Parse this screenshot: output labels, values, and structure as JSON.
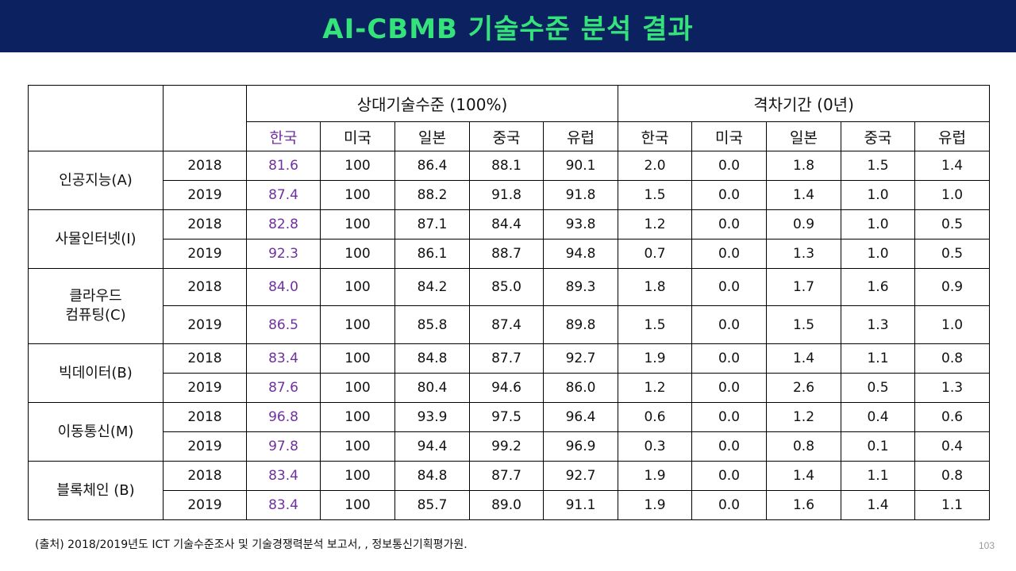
{
  "slide": {
    "title": "AI-CBMB 기술수준 분석 결과",
    "footnote": "(출처) 2018/2019년도 ICT 기술수준조사 및 기술경쟁력분석 보고서, , 정보통신기획평가원.",
    "page_number": "103"
  },
  "table": {
    "group_relative": {
      "title": "상대기술수준",
      "unit": "(100%)"
    },
    "group_gap": {
      "title": "격차기간",
      "unit": "(0년)"
    },
    "countries": [
      "한국",
      "미국",
      "일본",
      "중국",
      "유럽"
    ],
    "rows": [
      {
        "domain_lines": [
          "인공지능(A)"
        ],
        "years": [
          {
            "year": "2018",
            "rel": [
              "81.6",
              "100",
              "86.4",
              "88.1",
              "90.1"
            ],
            "gap": [
              "2.0",
              "0.0",
              "1.8",
              "1.5",
              "1.4"
            ]
          },
          {
            "year": "2019",
            "rel": [
              "87.4",
              "100",
              "88.2",
              "91.8",
              "91.8"
            ],
            "gap": [
              "1.5",
              "0.0",
              "1.4",
              "1.0",
              "1.0"
            ]
          }
        ]
      },
      {
        "domain_lines": [
          "사물인터넷(I)"
        ],
        "years": [
          {
            "year": "2018",
            "rel": [
              "82.8",
              "100",
              "87.1",
              "84.4",
              "93.8"
            ],
            "gap": [
              "1.2",
              "0.0",
              "0.9",
              "1.0",
              "0.5"
            ]
          },
          {
            "year": "2019",
            "rel": [
              "92.3",
              "100",
              "86.1",
              "88.7",
              "94.8"
            ],
            "gap": [
              "0.7",
              "0.0",
              "1.3",
              "1.0",
              "0.5"
            ]
          }
        ]
      },
      {
        "domain_lines": [
          "클라우드",
          "컴퓨팅(C)"
        ],
        "years": [
          {
            "year": "2018",
            "rel": [
              "84.0",
              "100",
              "84.2",
              "85.0",
              "89.3"
            ],
            "gap": [
              "1.8",
              "0.0",
              "1.7",
              "1.6",
              "0.9"
            ]
          },
          {
            "year": "2019",
            "rel": [
              "86.5",
              "100",
              "85.8",
              "87.4",
              "89.8"
            ],
            "gap": [
              "1.5",
              "0.0",
              "1.5",
              "1.3",
              "1.0"
            ]
          }
        ]
      },
      {
        "domain_lines": [
          "빅데이터(B)"
        ],
        "years": [
          {
            "year": "2018",
            "rel": [
              "83.4",
              "100",
              "84.8",
              "87.7",
              "92.7"
            ],
            "gap": [
              "1.9",
              "0.0",
              "1.4",
              "1.1",
              "0.8"
            ]
          },
          {
            "year": "2019",
            "rel": [
              "87.6",
              "100",
              "80.4",
              "94.6",
              "86.0"
            ],
            "gap": [
              "1.2",
              "0.0",
              "2.6",
              "0.5",
              "1.3"
            ]
          }
        ]
      },
      {
        "domain_lines": [
          "이동통신(M)"
        ],
        "years": [
          {
            "year": "2018",
            "rel": [
              "96.8",
              "100",
              "93.9",
              "97.5",
              "96.4"
            ],
            "gap": [
              "0.6",
              "0.0",
              "1.2",
              "0.4",
              "0.6"
            ]
          },
          {
            "year": "2019",
            "rel": [
              "97.8",
              "100",
              "94.4",
              "99.2",
              "96.9"
            ],
            "gap": [
              "0.3",
              "0.0",
              "0.8",
              "0.1",
              "0.4"
            ]
          }
        ]
      },
      {
        "domain_lines": [
          "블록체인 (B)"
        ],
        "years": [
          {
            "year": "2018",
            "rel": [
              "83.4",
              "100",
              "84.8",
              "87.7",
              "92.7"
            ],
            "gap": [
              "1.9",
              "0.0",
              "1.4",
              "1.1",
              "0.8"
            ]
          },
          {
            "year": "2019",
            "rel": [
              "83.4",
              "100",
              "85.7",
              "89.0",
              "91.1"
            ],
            "gap": [
              "1.9",
              "0.0",
              "1.6",
              "1.4",
              "1.1"
            ]
          }
        ]
      }
    ]
  },
  "colors": {
    "header_bg": "#0b2160",
    "title_text": "#34e37a",
    "korea_highlight": "#7030a0"
  }
}
